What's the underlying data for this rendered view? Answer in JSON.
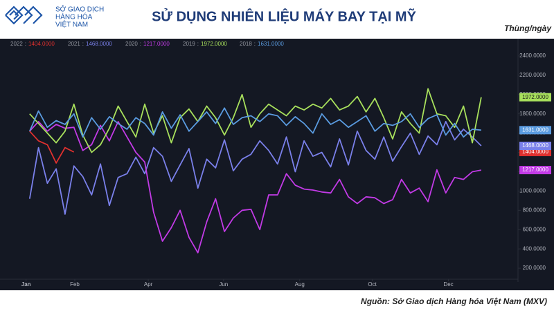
{
  "header": {
    "logo_lines": [
      "SỞ GIAO DỊCH",
      "HÀNG HÓA",
      "VIỆT NAM"
    ]
  },
  "chart_data": {
    "type": "line",
    "title": "SỬ DỤNG NHIÊN LIỆU MÁY BAY TẠI MỸ",
    "y_axis_label": "Thùng/ngày",
    "source": "Nguồn: Sở Giao dịch Hàng hóa Việt Nam (MXV)",
    "legend_separator": ":",
    "x": [
      1,
      2,
      3,
      4,
      5,
      6,
      7,
      8,
      9,
      10,
      11,
      12,
      13,
      14,
      15,
      16,
      17,
      18,
      19,
      20,
      21,
      22,
      23,
      24,
      25,
      26,
      27,
      28,
      29,
      30,
      31,
      32,
      33,
      34,
      35,
      36,
      37,
      38,
      39,
      40,
      41,
      42,
      43,
      44,
      45,
      46,
      47,
      48,
      49,
      50,
      51,
      52
    ],
    "xlim": [
      0,
      56
    ],
    "xticks": [
      {
        "value": 0.6,
        "label": "Jan"
      },
      {
        "value": 6.1,
        "label": "Feb"
      },
      {
        "value": 14.4,
        "label": "Apr"
      },
      {
        "value": 22.9,
        "label": "Jun"
      },
      {
        "value": 31.5,
        "label": "Aug"
      },
      {
        "value": 39.7,
        "label": "Oct"
      },
      {
        "value": 48.3,
        "label": "Dec"
      }
    ],
    "ylim": [
      0,
      2600
    ],
    "yticks": [
      {
        "value": 200,
        "label": "200.0000"
      },
      {
        "value": 400,
        "label": "400.0000"
      },
      {
        "value": 600,
        "label": "600.0000"
      },
      {
        "value": 800,
        "label": "800.0000"
      },
      {
        "value": 1000,
        "label": "1000.0000"
      },
      {
        "value": 1200,
        "label": "1200.0000"
      },
      {
        "value": 1400,
        "label": "1400.0000"
      },
      {
        "value": 1600,
        "label": "1600.0000"
      },
      {
        "value": 1800,
        "label": "1800.0000"
      },
      {
        "value": 2000,
        "label": "2000.0000"
      },
      {
        "value": 2200,
        "label": "2200.0000"
      },
      {
        "value": 2400,
        "label": "2400.0000"
      }
    ],
    "grid": false,
    "series": [
      {
        "name": "2022",
        "color": "#e0302e",
        "last_label": "1404.0000",
        "values": [
          1620,
          1520,
          1480,
          1290,
          1450,
          1404,
          null,
          null,
          null,
          null,
          null,
          null,
          null,
          null,
          null,
          null,
          null,
          null,
          null,
          null,
          null,
          null,
          null,
          null,
          null,
          null,
          null,
          null,
          null,
          null,
          null,
          null,
          null,
          null,
          null,
          null,
          null,
          null,
          null,
          null,
          null,
          null,
          null,
          null,
          null,
          null,
          null,
          null,
          null,
          null,
          null,
          null
        ]
      },
      {
        "name": "2021",
        "color": "#7a80ea",
        "last_label": "1468.0000",
        "values": [
          920,
          1450,
          1080,
          1230,
          760,
          1260,
          1150,
          960,
          1280,
          850,
          1140,
          1180,
          1350,
          1180,
          1450,
          1360,
          1100,
          1270,
          1440,
          1030,
          1330,
          1240,
          1530,
          1210,
          1330,
          1380,
          1520,
          1420,
          1280,
          1560,
          1200,
          1520,
          1360,
          1400,
          1250,
          1540,
          1270,
          1620,
          1420,
          1330,
          1560,
          1310,
          1460,
          1600,
          1380,
          1570,
          1480,
          1720,
          1530,
          1640,
          1560,
          1468
        ]
      },
      {
        "name": "2020",
        "color": "#c23ae6",
        "last_label": "1217.0000",
        "values": [
          1620,
          1720,
          1620,
          1690,
          1650,
          1660,
          1420,
          1480,
          1680,
          1520,
          1720,
          1560,
          1400,
          1300,
          780,
          480,
          620,
          800,
          520,
          360,
          680,
          920,
          580,
          720,
          800,
          810,
          600,
          960,
          960,
          1180,
          1060,
          1020,
          1010,
          990,
          980,
          1120,
          940,
          870,
          940,
          930,
          870,
          910,
          1120,
          980,
          1030,
          890,
          1220,
          980,
          1140,
          1120,
          1200,
          1217
        ]
      },
      {
        "name": "2019",
        "color": "#a8e05c",
        "last_label": "1972.0000",
        "values": [
          1800,
          1700,
          1600,
          1500,
          1620,
          1900,
          1580,
          1400,
          1480,
          1650,
          1880,
          1720,
          1560,
          1900,
          1600,
          1780,
          1500,
          1760,
          1850,
          1720,
          1880,
          1760,
          1580,
          1760,
          2000,
          1660,
          1800,
          1900,
          1840,
          1780,
          1880,
          1840,
          1900,
          1860,
          1960,
          1840,
          1880,
          1980,
          1820,
          1960,
          1760,
          1540,
          1820,
          1700,
          1600,
          2060,
          1800,
          1780,
          1660,
          1880,
          1500,
          1972
        ]
      },
      {
        "name": "2018",
        "color": "#5a9be0",
        "last_label": "1631.0000",
        "values": [
          1620,
          1830,
          1660,
          1730,
          1690,
          1800,
          1560,
          1760,
          1640,
          1770,
          1700,
          1640,
          1760,
          1700,
          1580,
          1820,
          1650,
          1790,
          1620,
          1720,
          1820,
          1700,
          1860,
          1690,
          1760,
          1780,
          1720,
          1800,
          1780,
          1680,
          1770,
          1700,
          1600,
          1800,
          1690,
          1740,
          1660,
          1720,
          1780,
          1620,
          1700,
          1680,
          1720,
          1800,
          1660,
          1750,
          1790,
          1580,
          1700,
          1560,
          1640,
          1631
        ]
      }
    ]
  }
}
